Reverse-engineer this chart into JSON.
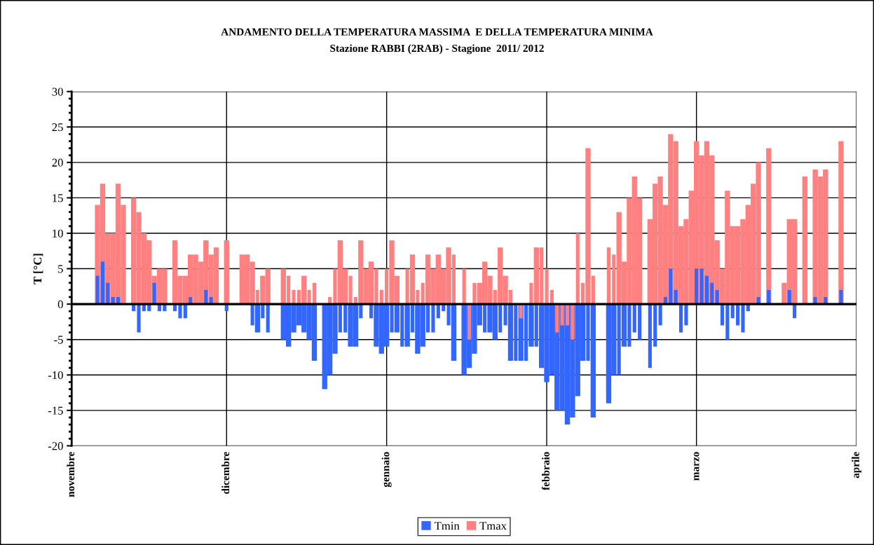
{
  "chart_data": {
    "type": "bar",
    "title": "ANDAMENTO DELLA TEMPERATURA MASSIMA  E DELLA TEMPERATURA MINIMA",
    "subtitle": "Stazione RABBI (2RAB) - Stagione  2011/ 2012",
    "ylabel": "T [°C]",
    "x": [
      "2011-11-06",
      "2011-11-07",
      "2011-11-08",
      "2011-11-09",
      "2011-11-10",
      "2011-11-11",
      "2011-11-12",
      "2011-11-13",
      "2011-11-14",
      "2011-11-15",
      "2011-11-16",
      "2011-11-17",
      "2011-11-18",
      "2011-11-19",
      "2011-11-20",
      "2011-11-21",
      "2011-11-22",
      "2011-11-23",
      "2011-11-24",
      "2011-11-25",
      "2011-11-26",
      "2011-11-27",
      "2011-11-28",
      "2011-11-29",
      "2011-11-30",
      "2011-12-01",
      "2011-12-02",
      "2011-12-03",
      "2011-12-04",
      "2011-12-05",
      "2011-12-06",
      "2011-12-07",
      "2011-12-08",
      "2011-12-09",
      "2011-12-10",
      "2011-12-11",
      "2011-12-12",
      "2011-12-13",
      "2011-12-14",
      "2011-12-15",
      "2011-12-16",
      "2011-12-17",
      "2011-12-18",
      "2011-12-19",
      "2011-12-20",
      "2011-12-21",
      "2011-12-22",
      "2011-12-23",
      "2011-12-24",
      "2011-12-25",
      "2011-12-26",
      "2011-12-27",
      "2011-12-28",
      "2011-12-29",
      "2011-12-30",
      "2011-12-31",
      "2012-01-01",
      "2012-01-02",
      "2012-01-03",
      "2012-01-04",
      "2012-01-05",
      "2012-01-06",
      "2012-01-07",
      "2012-01-08",
      "2012-01-09",
      "2012-01-10",
      "2012-01-11",
      "2012-01-12",
      "2012-01-13",
      "2012-01-14",
      "2012-01-15",
      "2012-01-16",
      "2012-01-17",
      "2012-01-18",
      "2012-01-19",
      "2012-01-20",
      "2012-01-21",
      "2012-01-22",
      "2012-01-23",
      "2012-01-24",
      "2012-01-25",
      "2012-01-26",
      "2012-01-27",
      "2012-01-28",
      "2012-01-29",
      "2012-01-30",
      "2012-01-31",
      "2012-02-01",
      "2012-02-02",
      "2012-02-03",
      "2012-02-04",
      "2012-02-05",
      "2012-02-06",
      "2012-02-07",
      "2012-02-08",
      "2012-02-09",
      "2012-02-10",
      "2012-02-11",
      "2012-02-12",
      "2012-02-13",
      "2012-02-14",
      "2012-02-15",
      "2012-02-16",
      "2012-02-17",
      "2012-02-18",
      "2012-02-19",
      "2012-02-20",
      "2012-02-21",
      "2012-02-22",
      "2012-02-23",
      "2012-02-24",
      "2012-02-25",
      "2012-02-26",
      "2012-02-27",
      "2012-02-28",
      "2012-02-29",
      "2012-03-01",
      "2012-03-02",
      "2012-03-03",
      "2012-03-04",
      "2012-03-05",
      "2012-03-06",
      "2012-03-07",
      "2012-03-08",
      "2012-03-09",
      "2012-03-10",
      "2012-03-11",
      "2012-03-12",
      "2012-03-13",
      "2012-03-14",
      "2012-03-15",
      "2012-03-16",
      "2012-03-17",
      "2012-03-18",
      "2012-03-19",
      "2012-03-20",
      "2012-03-21",
      "2012-03-22",
      "2012-03-23",
      "2012-03-24",
      "2012-03-25",
      "2012-03-26",
      "2012-03-27",
      "2012-03-28",
      "2012-03-29"
    ],
    "series": [
      {
        "name": "Tmin",
        "color": "#3366ff",
        "values": [
          4,
          6,
          3,
          1,
          1,
          0,
          null,
          -1,
          -4,
          -1,
          -1,
          3,
          -1,
          -1,
          null,
          -1,
          -2,
          -2,
          1,
          0,
          0,
          2,
          1,
          0,
          null,
          -1,
          null,
          null,
          0,
          0,
          -3,
          -4,
          -2,
          -4,
          null,
          null,
          -5,
          -6,
          -4,
          -3,
          -4,
          -5,
          -8,
          null,
          -12,
          -10,
          -7,
          -4,
          -4,
          -6,
          -6,
          -2,
          0,
          -2,
          -6,
          -7,
          -6,
          -4,
          -4,
          -6,
          -6,
          -4,
          -7,
          -6,
          -4,
          -4,
          -2,
          -1,
          -3,
          -8,
          null,
          -10,
          -9,
          -7,
          -3,
          -4,
          -4,
          -5,
          -4,
          -3,
          -8,
          -8,
          -8,
          -8,
          -6,
          -6,
          -9,
          -11,
          -10,
          -15,
          -15,
          -17,
          -16,
          -13,
          -8,
          -8,
          -16,
          null,
          null,
          -14,
          -10,
          -10,
          -6,
          -6,
          -4,
          -5,
          null,
          -9,
          -6,
          -3,
          1,
          5,
          2,
          -4,
          -3,
          0,
          5,
          5,
          4,
          3,
          2,
          -3,
          -5,
          -2,
          -3,
          -4,
          -1,
          0,
          1,
          null,
          2,
          null,
          null,
          0,
          2,
          -2,
          null,
          0,
          null,
          1,
          0,
          1,
          null,
          null,
          2
        ]
      },
      {
        "name": "Tmax",
        "color": "#ff8080",
        "values": [
          14,
          17,
          10,
          10,
          17,
          14,
          null,
          15,
          13,
          10,
          9,
          4,
          5,
          5,
          null,
          9,
          4,
          4,
          7,
          7,
          6,
          9,
          7,
          8,
          null,
          9,
          null,
          null,
          7,
          7,
          6,
          2,
          4,
          5,
          null,
          null,
          5,
          4,
          2,
          2,
          4,
          2,
          3,
          null,
          0,
          1,
          5,
          9,
          5,
          4,
          1,
          9,
          5,
          6,
          5,
          2,
          5,
          9,
          4,
          null,
          5,
          7,
          2,
          3,
          7,
          5,
          7,
          5,
          8,
          7,
          null,
          5,
          -5,
          3,
          3,
          6,
          4,
          2,
          8,
          4,
          2,
          null,
          -2,
          null,
          3,
          8,
          8,
          5,
          2,
          -4,
          -3,
          -3,
          -5,
          10,
          3,
          22,
          4,
          null,
          null,
          8,
          7,
          13,
          6,
          15,
          18,
          15,
          null,
          12,
          17,
          18,
          14,
          24,
          23,
          11,
          12,
          16,
          23,
          21,
          23,
          21,
          9,
          5,
          16,
          11,
          11,
          12,
          14,
          17,
          20,
          null,
          22,
          null,
          null,
          3,
          12,
          12,
          null,
          18,
          null,
          19,
          18,
          19,
          null,
          null,
          23
        ]
      }
    ],
    "xlim": [
      "2011-11-01",
      "2012-04-01"
    ],
    "xticks": [
      {
        "value": "2011-11-01",
        "label": "novembre"
      },
      {
        "value": "2011-12-01",
        "label": "dicembre"
      },
      {
        "value": "2012-01-01",
        "label": "gennaio"
      },
      {
        "value": "2012-02-01",
        "label": "febbraio"
      },
      {
        "value": "2012-03-01",
        "label": "marzo"
      },
      {
        "value": "2012-04-01",
        "label": "aprile"
      }
    ],
    "ylim": [
      -20,
      30
    ],
    "yticks": [
      -20,
      -15,
      -10,
      -5,
      0,
      5,
      10,
      15,
      20,
      25,
      30
    ],
    "ref_lines": [
      {
        "axis": "y",
        "value": 0,
        "color": "#000000"
      }
    ],
    "grid": true,
    "legend": "bottom"
  }
}
